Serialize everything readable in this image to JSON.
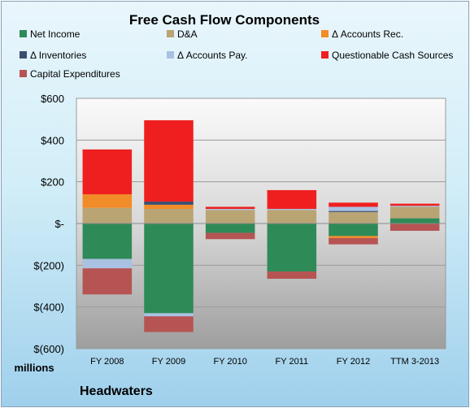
{
  "chart_data": {
    "type": "bar",
    "stacked": true,
    "title": "Free Cash Flow Components",
    "categories": [
      "FY 2008",
      "FY 2009",
      "FY 2010",
      "FY 2011",
      "FY 2012",
      "TTM 3-2013"
    ],
    "y_tick_labels": [
      "$600",
      "$400",
      "$200",
      "$-",
      "$(200)",
      "$(400)",
      "$(600)"
    ],
    "y_tick_values": [
      600,
      400,
      200,
      0,
      -200,
      -400,
      -600
    ],
    "ylim": [
      -600,
      600
    ],
    "units_label": "millions",
    "company": "Headwaters",
    "legend_position": "top",
    "grid": true,
    "series": [
      {
        "name": "Net Income",
        "color": "#2e8b57",
        "values": [
          -170,
          -430,
          -45,
          -230,
          -60,
          25
        ]
      },
      {
        "name": "D&A",
        "color": "#b9a474",
        "values": [
          75,
          70,
          65,
          65,
          55,
          55
        ]
      },
      {
        "name": "Δ Accounts Rec.",
        "color": "#f28c28",
        "values": [
          65,
          20,
          0,
          0,
          -10,
          0
        ]
      },
      {
        "name": "Δ Inventories",
        "color": "#3a4f6f",
        "values": [
          0,
          15,
          0,
          0,
          5,
          0
        ]
      },
      {
        "name": "Δ Accounts Pay.",
        "color": "#a9c2e2",
        "values": [
          -45,
          -15,
          5,
          5,
          20,
          5
        ]
      },
      {
        "name": "Questionable Cash Sources",
        "color": "#ef1f1f",
        "values": [
          215,
          390,
          10,
          90,
          20,
          10
        ]
      },
      {
        "name": "Capital Expenditures",
        "color": "#b65454",
        "values": [
          -125,
          -75,
          -30,
          -35,
          -30,
          -35
        ]
      }
    ]
  }
}
